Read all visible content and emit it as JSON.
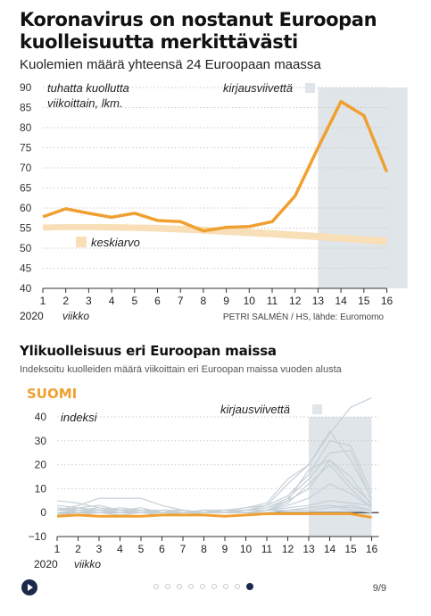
{
  "header": {
    "title": "Koronavirus on nostanut Euroopan kuolleisuutta merkittävästi",
    "subtitle": "Kuolemien määrä yhteensä 24 Euroopaan maassa"
  },
  "chart1_labels": {
    "unit_line1": "tuhatta kuollutta",
    "unit_line2": "viikoittain, lkm.",
    "shade_label": "kirjausviivettä",
    "avg_label": "keskiarvo",
    "year": "2020",
    "week_label": "viikko",
    "credit": "PETRI SALMÉN / HS, lähde: Euromomo"
  },
  "chart2_labels": {
    "title": "Ylikuolleisuus eri Euroopan maissa",
    "subtitle": "Indeksoitu kuolleiden määrä viikoittain eri Euroopan maissa vuoden alusta",
    "country": "SUOMI",
    "unit": "indeksi",
    "shade_label": "kirjausviivettä",
    "year": "2020",
    "week_label": "viikko"
  },
  "pager": {
    "counter": "9/9",
    "dot_count": 9,
    "active_index": 8
  },
  "colors": {
    "orange": "#f0a030",
    "avg_band": "#f8dfb8",
    "shade": "#dfe5e9",
    "grid": "#c9c9c9",
    "gray_lines": "#c6d0d7",
    "navy": "#1b2a4a"
  },
  "chart_data": [
    {
      "type": "line",
      "title": "Koronavirus on nostanut Euroopan kuolleisuutta merkittävästi",
      "subtitle": "Kuolemien määrä yhteensä 24 Euroopaan maassa",
      "x": [
        1,
        2,
        3,
        4,
        5,
        6,
        7,
        8,
        9,
        10,
        11,
        12,
        13,
        14,
        15,
        16
      ],
      "ylim": [
        40,
        90
      ],
      "yticks": [
        40,
        45,
        50,
        55,
        60,
        65,
        70,
        75,
        80,
        85,
        90
      ],
      "series": [
        {
          "values": [
            57.8,
            59.8,
            58.7,
            57.7,
            58.7,
            56.9,
            56.6,
            54.3,
            55.2,
            55.4,
            56.6,
            63.0,
            75.0,
            86.5,
            83.0,
            69.0
          ]
        }
      ],
      "average_band": {
        "upper": [
          55.9,
          56.0,
          56.0,
          56.0,
          55.9,
          55.8,
          55.6,
          55.4,
          55.1,
          54.8,
          54.5,
          54.1,
          53.8,
          53.4,
          53.0,
          52.6
        ],
        "lower": [
          54.4,
          54.5,
          54.5,
          54.4,
          54.3,
          54.1,
          53.9,
          53.6,
          53.3,
          53.0,
          52.7,
          52.3,
          52.0,
          51.6,
          51.2,
          50.8
        ]
      },
      "shaded_weeks": [
        13,
        16.9
      ],
      "grid": true
    },
    {
      "type": "line",
      "title": "Ylikuolleisuus eri Euroopan maissa",
      "subtitle": "Indeksoitu kuolleiden määrä viikoittain eri Euroopan maissa vuoden alusta",
      "x": [
        1,
        2,
        3,
        4,
        5,
        6,
        7,
        8,
        9,
        10,
        11,
        12,
        13,
        14,
        15,
        16
      ],
      "ylim": [
        -10,
        40
      ],
      "yticks": [
        -10,
        0,
        10,
        20,
        30,
        40
      ],
      "highlight": {
        "name": "SUOMI",
        "values": [
          -1.5,
          -1.0,
          -1.5,
          -1.5,
          -1.5,
          -1.0,
          -1.0,
          -1.0,
          -1.5,
          -1.0,
          -0.5,
          -0.5,
          -0.5,
          -0.5,
          -0.5,
          -2.0
        ]
      },
      "series": [
        {
          "values": [
            5,
            4,
            2,
            1,
            0,
            -1,
            0,
            0,
            1,
            2,
            4,
            14,
            20,
            33,
            44,
            48
          ]
        },
        {
          "values": [
            3,
            2,
            1,
            2,
            1,
            0,
            0,
            1,
            1,
            2,
            3,
            12,
            20,
            34,
            22,
            6
          ]
        },
        {
          "values": [
            1,
            3,
            6,
            6,
            6,
            3,
            1,
            0,
            0,
            1,
            3,
            7,
            16,
            30,
            28,
            8
          ]
        },
        {
          "values": [
            0,
            1,
            2,
            1,
            0,
            0,
            0,
            0,
            0,
            1,
            2,
            6,
            14,
            25,
            26,
            5
          ]
        },
        {
          "values": [
            2,
            0,
            0,
            1,
            1,
            1,
            1,
            0,
            0,
            0,
            1,
            5,
            18,
            22,
            15,
            3
          ]
        },
        {
          "values": [
            -1,
            2,
            3,
            1,
            2,
            0,
            0,
            1,
            0,
            0,
            1,
            4,
            12,
            20,
            10,
            2
          ]
        },
        {
          "values": [
            1,
            1,
            0,
            0,
            0,
            1,
            0,
            0,
            0,
            1,
            2,
            5,
            10,
            22,
            12,
            4
          ]
        },
        {
          "values": [
            0,
            0,
            1,
            0,
            1,
            0,
            1,
            0,
            0,
            0,
            1,
            3,
            6,
            12,
            8,
            2
          ]
        },
        {
          "values": [
            1,
            2,
            1,
            1,
            0,
            0,
            0,
            0,
            1,
            1,
            1,
            2,
            3,
            5,
            4,
            3
          ]
        },
        {
          "values": [
            0,
            -1,
            0,
            0,
            0,
            -1,
            0,
            0,
            0,
            0,
            1,
            1,
            2,
            3,
            2,
            1
          ]
        },
        {
          "values": [
            2,
            1,
            1,
            0,
            0,
            0,
            0,
            1,
            1,
            0,
            0,
            1,
            1,
            2,
            3,
            1
          ]
        },
        {
          "values": [
            -1,
            0,
            0,
            -1,
            0,
            0,
            -1,
            0,
            0,
            0,
            0,
            1,
            2,
            3,
            1,
            0
          ]
        }
      ],
      "shaded_weeks": [
        13,
        16
      ],
      "grid": true
    }
  ]
}
